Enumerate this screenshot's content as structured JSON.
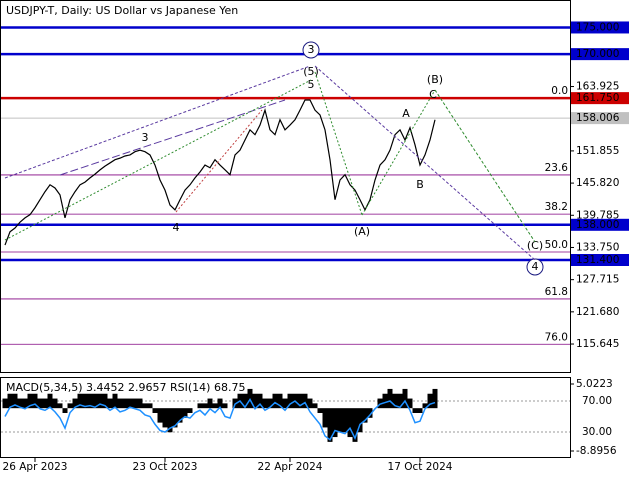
{
  "chart_data": [
    {
      "type": "line",
      "title": "USDJPY-T, Daily:  US Dollar vs Japanese Yen",
      "categories": [
        null,
        null,
        null,
        null,
        null,
        null,
        "26 Apr 2023",
        null,
        null,
        null,
        null,
        null,
        null,
        null,
        null,
        null,
        null,
        null,
        null,
        null,
        null,
        null,
        null,
        null,
        null,
        null,
        null,
        null,
        null,
        null,
        null,
        null,
        "23 Oct 2023",
        null,
        null,
        null,
        null,
        null,
        null,
        null,
        null,
        null,
        null,
        null,
        null,
        null,
        null,
        null,
        null,
        null,
        null,
        null,
        null,
        null,
        null,
        null,
        null,
        "22 Apr 2024",
        null,
        null,
        null,
        null,
        null,
        null,
        null,
        null,
        null,
        null,
        null,
        null,
        null,
        null,
        null,
        null,
        null,
        null,
        null,
        null,
        null,
        null,
        null,
        null,
        null,
        "17 Oct 2024",
        null,
        null,
        null
      ],
      "values": [
        134.2,
        136.7,
        137.4,
        138.5,
        139.3,
        139.9,
        141.2,
        142.7,
        144.2,
        145.5,
        144.9,
        143.6,
        139.3,
        142.7,
        144.2,
        145.5,
        146.0,
        146.8,
        147.5,
        148.3,
        149.0,
        149.6,
        150.2,
        150.5,
        150.9,
        151.1,
        151.7,
        152.0,
        151.7,
        151.1,
        149.2,
        146.4,
        144.5,
        141.7,
        140.8,
        142.7,
        144.5,
        145.5,
        146.8,
        147.9,
        149.2,
        148.7,
        150.2,
        149.2,
        148.3,
        147.4,
        151.1,
        152.0,
        153.9,
        155.8,
        154.9,
        156.7,
        159.5,
        155.8,
        154.9,
        157.7,
        155.8,
        156.7,
        157.7,
        159.5,
        161.4,
        161.4,
        159.5,
        158.6,
        155.8,
        150.2,
        142.7,
        146.4,
        147.4,
        145.5,
        144.5,
        142.7,
        140.8,
        142.7,
        146.4,
        149.2,
        150.2,
        152.0,
        154.9,
        155.8,
        153.9,
        156.2,
        153.0,
        149.2,
        151.1,
        153.9,
        157.7
      ],
      "color": "#000000",
      "ylim": [
        110.4,
        179.4
      ],
      "yticks": [
        {
          "value": 163.925,
          "label": "163.925"
        },
        {
          "value": 151.855,
          "label": "151.855"
        },
        {
          "value": 145.82,
          "label": "145.820"
        },
        {
          "value": 139.785,
          "label": "139.785"
        },
        {
          "value": 133.75,
          "label": "133.750"
        },
        {
          "value": 127.715,
          "label": "127.715"
        },
        {
          "value": 121.68,
          "label": "121.680"
        },
        {
          "value": 115.645,
          "label": "115.645"
        }
      ],
      "levels": [
        {
          "value": 175,
          "label": "175.000",
          "color": "#0000cc"
        },
        {
          "value": 170,
          "label": "170.000",
          "color": "#0000cc"
        },
        {
          "value": 161.75,
          "label": "161.750",
          "color": "#cc0000"
        },
        {
          "value": 158.006,
          "label": "158.006",
          "color": "#c0c0c0"
        },
        {
          "value": 138,
          "label": "138.000",
          "color": "#0000cc"
        },
        {
          "value": 131.4,
          "label": "131.400",
          "color": "#0000cc"
        }
      ],
      "fib_levels": [
        {
          "value": 161.75,
          "label": "0.0"
        },
        {
          "value": 147.35,
          "label": "23.6"
        },
        {
          "value": 140.0,
          "label": "38.2"
        },
        {
          "value": 132.9,
          "label": "50.0"
        },
        {
          "value": 124.1,
          "label": "61.8"
        },
        {
          "value": 115.6,
          "label": "76.0"
        }
      ],
      "wave_labels": [
        {
          "text": "3",
          "color": "#1a1a80",
          "circled": true
        },
        {
          "text": "(5)",
          "color": "#2e8b2e"
        },
        {
          "text": "5",
          "color": "#a0403a"
        },
        {
          "text": "3",
          "color": "#a0403a"
        },
        {
          "text": "4",
          "color": "#a0403a"
        },
        {
          "text": "(A)",
          "color": "#2e8b2e"
        },
        {
          "text": "A",
          "color": "#a0403a"
        },
        {
          "text": "B",
          "color": "#a0403a"
        },
        {
          "text": "C",
          "color": "#a0403a"
        },
        {
          "text": "(B)",
          "color": "#2e8b2e"
        },
        {
          "text": "(C)",
          "color": "#2e8b2e"
        },
        {
          "text": "4",
          "color": "#1a1a80",
          "circled": true
        }
      ]
    },
    {
      "type": "bar",
      "title": "MACD(5,34,5) 3.4452 2.9657 RSI(14) 68.75",
      "values": [
        2,
        3,
        3,
        2,
        2,
        3,
        3,
        2,
        2,
        3,
        2,
        1,
        -1,
        1,
        2,
        3,
        3,
        3,
        3,
        3,
        3,
        2,
        3,
        2,
        2,
        2,
        2,
        2,
        1,
        1,
        -1,
        -3,
        -4,
        -5,
        -4,
        -3,
        -2,
        -1,
        0,
        1,
        1,
        2,
        1,
        2,
        1,
        0,
        2,
        3,
        3,
        4,
        3,
        3,
        2,
        2,
        3,
        3,
        2,
        3,
        3,
        3,
        3,
        2,
        1,
        -1,
        -4,
        -7,
        -6,
        -5,
        -5,
        -6,
        -7,
        -5,
        -3,
        -2,
        0,
        2,
        3,
        4,
        3,
        3,
        4,
        2,
        -1,
        -1,
        1,
        3,
        4
      ],
      "color": "#000000",
      "line_values": [
        50,
        62,
        65,
        62,
        60,
        64,
        66,
        60,
        58,
        62,
        56,
        48,
        35,
        55,
        62,
        65,
        63,
        64,
        62,
        66,
        64,
        58,
        62,
        56,
        58,
        62,
        60,
        58,
        52,
        50,
        40,
        32,
        30,
        35,
        38,
        45,
        50,
        48,
        55,
        58,
        52,
        60,
        55,
        62,
        50,
        48,
        66,
        70,
        62,
        72,
        60,
        66,
        58,
        62,
        68,
        64,
        58,
        66,
        70,
        64,
        68,
        56,
        48,
        40,
        25,
        20,
        32,
        30,
        28,
        35,
        22,
        40,
        45,
        52,
        60,
        66,
        68,
        70,
        64,
        62,
        70,
        58,
        42,
        44,
        60,
        66,
        68
      ],
      "line_color": "#1e90ff",
      "ylim": [
        -10.35,
        6.27
      ],
      "yticks": [
        {
          "value": 5.0223,
          "label": "5.0223"
        },
        {
          "value": -8.8956,
          "label": "-8.8956"
        }
      ],
      "y2lim": [
        -3.5,
        99.7
      ],
      "y2ticks": [
        {
          "value": 70,
          "label": "70.00"
        },
        {
          "value": 30,
          "label": "30.00"
        }
      ]
    }
  ]
}
